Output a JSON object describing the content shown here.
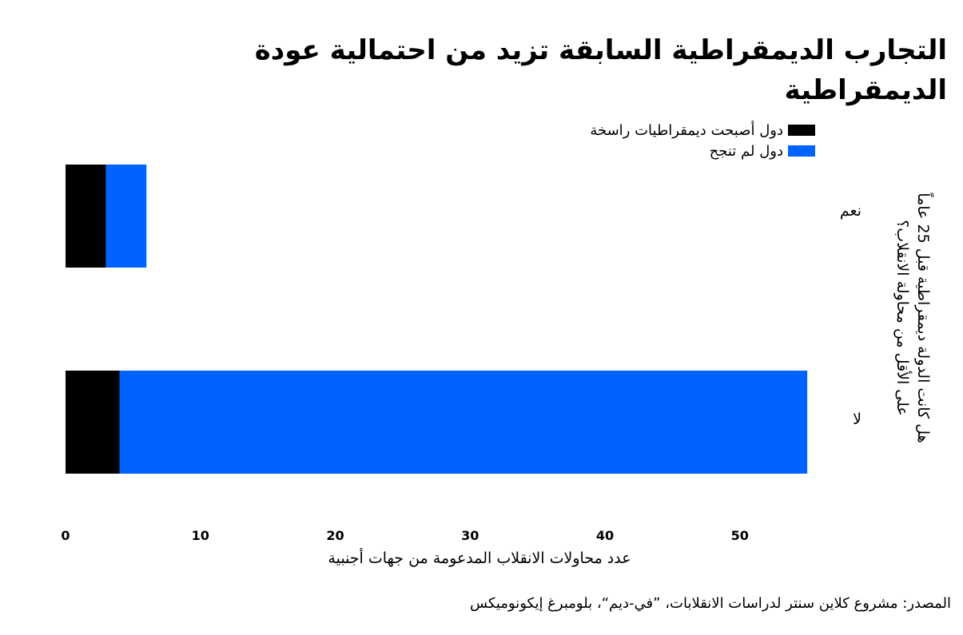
{
  "title": "التجارب الديمقراطية السابقة تزيد من احتمالية عودة الديمقراطية",
  "source": "المصدر: مشروع كلاين سنتر لدراسات الانقلابات، ”في-ديم“، بلومبرغ إيكونوميكس",
  "chart_data": {
    "type": "bar",
    "orientation": "horizontal",
    "stacked": true,
    "title": "التجارب الديمقراطية السابقة تزيد من احتمالية عودة الديمقراطية",
    "xlabel": "عدد محاولات الانقلاب المدعومة من جهات أجنبية",
    "ylabel": "هل كانت الدولة ديمقراطية قبل 25 عاماً على الأقل من محاولة الانقلاب؟",
    "categories": [
      "نعم",
      "لا"
    ],
    "series": [
      {
        "name": "دول أصبحت ديمقراطيات راسخة",
        "color": "#000000",
        "values": [
          3,
          4
        ]
      },
      {
        "name": "دول لم تنجح",
        "color": "#0062ff",
        "values": [
          3,
          51
        ]
      }
    ],
    "xlim": [
      0,
      55
    ],
    "xticks": [
      "0",
      "10",
      "20",
      "30",
      "40",
      "50"
    ],
    "legend": "top",
    "grid": false
  }
}
